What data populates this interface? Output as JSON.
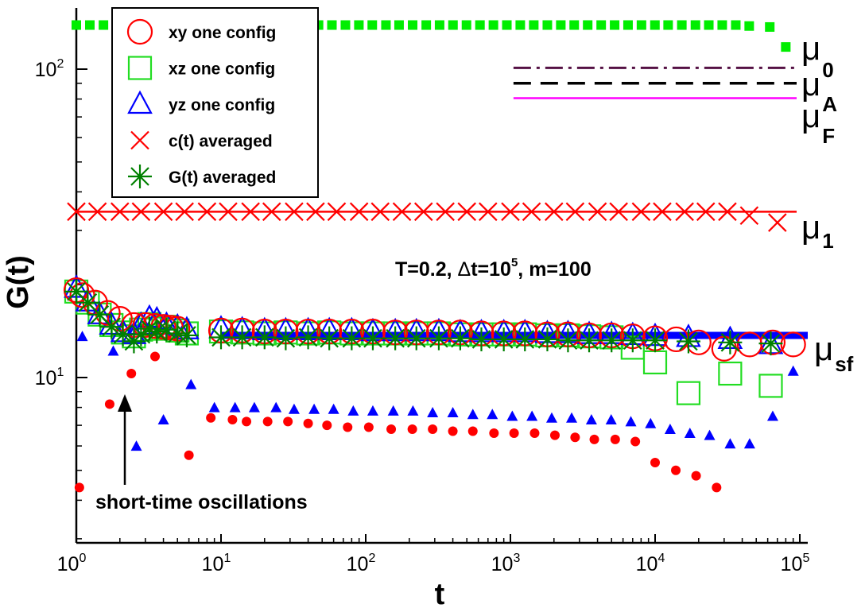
{
  "chart_data": {
    "type": "scatter",
    "title": "",
    "xlabel": "t",
    "ylabel": "G(t)",
    "x_scale": "log",
    "y_scale": "log",
    "xlim": [
      1,
      100000
    ],
    "ylim": [
      3,
      160
    ],
    "x_ticks": [
      {
        "value": 1,
        "base": "10",
        "exp": "0"
      },
      {
        "value": 10,
        "base": "10",
        "exp": "1"
      },
      {
        "value": 100,
        "base": "10",
        "exp": "2"
      },
      {
        "value": 1000,
        "base": "10",
        "exp": "3"
      },
      {
        "value": 10000,
        "base": "10",
        "exp": "4"
      },
      {
        "value": 100000,
        "base": "10",
        "exp": "5"
      }
    ],
    "y_ticks": [
      {
        "value": 10,
        "base": "10",
        "exp": "1"
      },
      {
        "value": 100,
        "base": "10",
        "exp": "2"
      }
    ],
    "legend": {
      "position": "top-left",
      "entries": [
        {
          "label": "xy one config",
          "marker": "open-circle",
          "color": "#ff0000"
        },
        {
          "label": "xz one config",
          "marker": "open-square",
          "color": "#22dd22"
        },
        {
          "label": "yz one config",
          "marker": "open-triangle",
          "color": "#0000ff"
        },
        {
          "label": "c(t) averaged",
          "marker": "x",
          "color": "#ff0000"
        },
        {
          "label": "G(t) averaged",
          "marker": "asterisk",
          "color": "#008000"
        }
      ]
    },
    "series": [
      {
        "name": "xy one config",
        "marker": "open-circle",
        "color": "#ff0000",
        "x": [
          1,
          1.1,
          1.35,
          1.65,
          2,
          2.5,
          3,
          3.5,
          4,
          4.5,
          5,
          10,
          14,
          20,
          28,
          40,
          56,
          80,
          112,
          160,
          224,
          320,
          450,
          630,
          900,
          1260,
          1800,
          2500,
          3500,
          5000,
          7000,
          10000,
          14000,
          20000,
          30000,
          45000,
          65000,
          90000
        ],
        "y": [
          19.2,
          18.5,
          17.5,
          16.2,
          15.5,
          14.8,
          14.8,
          14.7,
          14.6,
          14.5,
          14.4,
          14.2,
          14.2,
          14.1,
          14.1,
          14.1,
          14.1,
          14.1,
          14.1,
          14.0,
          14.0,
          14.0,
          14.0,
          13.9,
          13.9,
          13.9,
          13.8,
          13.8,
          13.7,
          13.7,
          13.6,
          13.4,
          13.3,
          13.0,
          12.4,
          12.8,
          13.0,
          12.8
        ]
      },
      {
        "name": "xz one config",
        "marker": "open-square",
        "color": "#22dd22",
        "x": [
          1,
          1.2,
          1.45,
          1.75,
          2.1,
          2.5,
          2.8,
          3.2,
          3.6,
          4.2,
          5,
          5.8,
          10,
          14,
          20,
          28,
          40,
          56,
          80,
          112,
          160,
          224,
          320,
          450,
          630,
          900,
          1260,
          1800,
          2500,
          3500,
          5000,
          7000,
          10000,
          17000,
          33000,
          63000
        ],
        "y": [
          19.0,
          17.5,
          16.0,
          14.8,
          14.0,
          13.6,
          14.3,
          14.9,
          14.4,
          14.6,
          14.2,
          13.9,
          14.1,
          14.0,
          13.9,
          14.0,
          13.9,
          14.0,
          13.9,
          13.9,
          13.9,
          13.9,
          13.9,
          13.8,
          13.8,
          13.8,
          13.8,
          13.7,
          13.7,
          13.6,
          13.5,
          12.5,
          11.2,
          8.9,
          10.3,
          9.4
        ]
      },
      {
        "name": "yz one config",
        "marker": "open-triangle",
        "color": "#0000ff",
        "x": [
          1,
          1.2,
          1.45,
          1.75,
          2.1,
          2.5,
          2.8,
          3.2,
          3.6,
          4.2,
          5,
          5.8,
          10,
          14,
          20,
          28,
          40,
          56,
          80,
          112,
          160,
          224,
          320,
          450,
          630,
          900,
          1260,
          1800,
          2500,
          3500,
          5000,
          7000,
          10000,
          17000,
          33000,
          63000
        ],
        "y": [
          19.5,
          17.6,
          16.0,
          14.8,
          14.0,
          13.8,
          14.8,
          15.6,
          15.4,
          14.8,
          14.6,
          14.3,
          14.4,
          14.3,
          14.2,
          14.2,
          14.2,
          14.2,
          14.2,
          14.1,
          14.1,
          14.1,
          14.1,
          14.0,
          14.0,
          14.0,
          14.0,
          13.9,
          13.9,
          13.8,
          13.8,
          13.7,
          13.6,
          13.5,
          13.3,
          12.8
        ]
      },
      {
        "name": "c(t) averaged",
        "marker": "x",
        "color": "#ff0000",
        "x": [
          1,
          1.4,
          2,
          2.8,
          4,
          5.6,
          8,
          11.2,
          16,
          22.4,
          32,
          45,
          63,
          90,
          126,
          178,
          251,
          355,
          500,
          700,
          1000,
          1400,
          2000,
          2800,
          4000,
          5600,
          8000,
          11200,
          16000,
          22400,
          31600,
          44700,
          70000
        ],
        "y": [
          34.5,
          34.5,
          34.5,
          34.5,
          34.5,
          34.5,
          34.5,
          34.5,
          34.5,
          34.5,
          34.5,
          34.5,
          34.5,
          34.5,
          34.5,
          34.5,
          34.5,
          34.5,
          34.5,
          34.5,
          34.5,
          34.5,
          34.5,
          34.5,
          34.5,
          34.5,
          34.5,
          34.5,
          34.5,
          34.5,
          34.5,
          33.5,
          31.8
        ]
      },
      {
        "name": "G(t) averaged",
        "marker": "asterisk",
        "color": "#008000",
        "x": [
          1,
          1.2,
          1.45,
          1.75,
          2.1,
          2.5,
          2.8,
          3.2,
          3.6,
          4.2,
          5,
          5.8,
          10,
          14,
          20,
          28,
          40,
          56,
          80,
          112,
          160,
          224,
          320,
          450,
          630,
          900,
          1260,
          1800,
          2500,
          3500,
          5000,
          7000,
          10000,
          17000,
          33000,
          63000
        ],
        "y": [
          19.0,
          17.5,
          16.0,
          14.6,
          13.8,
          13.1,
          13.8,
          14.4,
          14.1,
          14.3,
          13.9,
          13.7,
          13.5,
          13.5,
          13.5,
          13.4,
          13.5,
          13.4,
          13.4,
          13.4,
          13.4,
          13.4,
          13.4,
          13.4,
          13.3,
          13.3,
          13.3,
          13.3,
          13.2,
          13.2,
          13.2,
          13.2,
          13.2,
          13.1,
          13.0,
          12.9
        ]
      },
      {
        "name": "red filled circles",
        "marker": "filled-circle",
        "color": "#ff0000",
        "x": [
          1.05,
          1.7,
          2.4,
          3.5,
          6,
          8.5,
          12,
          15,
          21,
          29,
          40,
          54,
          75,
          105,
          150,
          210,
          290,
          400,
          550,
          770,
          1060,
          1470,
          2030,
          2800,
          3800,
          5300,
          7300,
          10000,
          13900,
          19200,
          26600
        ],
        "y": [
          4.4,
          8.2,
          10.3,
          11.7,
          5.6,
          7.4,
          7.3,
          7.2,
          7.2,
          7.2,
          7.1,
          7.0,
          6.9,
          6.9,
          6.8,
          6.8,
          6.8,
          6.7,
          6.7,
          6.6,
          6.6,
          6.6,
          6.5,
          6.4,
          6.3,
          6.3,
          6.2,
          5.3,
          5.0,
          4.8,
          4.4
        ]
      },
      {
        "name": "blue filled triangles",
        "marker": "filled-triangle",
        "color": "#0000ff",
        "x": [
          1.1,
          1.8,
          2.6,
          4,
          6.2,
          9,
          12.5,
          17,
          24,
          32,
          44,
          60,
          82,
          112,
          155,
          212,
          290,
          400,
          550,
          750,
          1030,
          1410,
          1930,
          2650,
          3630,
          4970,
          6800,
          9300,
          12700,
          17400,
          23800,
          33000,
          45000,
          65000,
          90000
        ],
        "y": [
          13.6,
          12.2,
          6.0,
          7.3,
          9.5,
          8.0,
          8.0,
          8.0,
          8.0,
          7.9,
          7.9,
          7.9,
          7.8,
          7.8,
          7.8,
          7.8,
          7.7,
          7.7,
          7.6,
          7.6,
          7.5,
          7.5,
          7.4,
          7.4,
          7.3,
          7.3,
          7.2,
          7.1,
          6.8,
          6.6,
          6.5,
          6.1,
          6.1,
          7.5,
          10.5
        ]
      },
      {
        "name": "green filled squares",
        "marker": "filled-square",
        "color": "#00ee00",
        "x": [
          1,
          1.24,
          1.54,
          1.9,
          2.36,
          2.92,
          3.62,
          4.48,
          5.55,
          6.87,
          8.51,
          10.5,
          13.1,
          16.2,
          20.0,
          24.8,
          30.8,
          38.1,
          47.2,
          58.4,
          72.4,
          89.7,
          111,
          138,
          170,
          211,
          262,
          324,
          401,
          497,
          616,
          763,
          945,
          1170,
          1450,
          1800,
          2230,
          2760,
          3420,
          4240,
          5250,
          6500,
          8050,
          9970,
          12300,
          15300,
          19000,
          23500,
          29100,
          36100,
          44700,
          62000,
          80000
        ],
        "y": [
          139,
          139,
          139,
          139,
          139,
          139,
          139,
          139,
          139,
          139,
          139,
          139,
          139,
          139,
          139,
          139,
          139,
          139,
          139,
          139,
          139,
          139,
          139,
          139,
          139,
          139,
          139,
          139,
          139,
          139,
          139,
          139,
          139,
          139,
          139,
          139,
          139,
          139,
          139,
          139,
          139,
          139,
          139,
          139,
          139,
          139,
          139,
          139,
          139,
          139,
          138,
          137,
          118
        ]
      }
    ],
    "lines": [
      {
        "name": "mu_0",
        "y": 101,
        "x_start": 1050,
        "x_end": 100000,
        "style": "dash-dot",
        "color": "#551144",
        "label_letter": "μ",
        "label_sub": "0"
      },
      {
        "name": "mu_A",
        "y": 90,
        "x_start": 1050,
        "x_end": 100000,
        "style": "dashed",
        "color": "#000000",
        "label_letter": "μ",
        "label_sub": "A"
      },
      {
        "name": "mu_F",
        "y": 80.5,
        "x_start": 1050,
        "x_end": 100000,
        "style": "solid",
        "color": "#ff00ff",
        "label_letter": "μ",
        "label_sub": "F"
      },
      {
        "name": "mu_1",
        "y": 34.5,
        "x_start": 1,
        "x_end": 100000,
        "style": "solid",
        "color": "#ff0000",
        "label_letter": "μ",
        "label_sub": "1"
      },
      {
        "name": "mu_sf",
        "y": 13.7,
        "x_start": 10,
        "x_end": 100000,
        "style": "thick-solid",
        "color": "#0000ff",
        "label_letter": "μ",
        "label_sub": "sf"
      }
    ],
    "annotations": [
      {
        "name": "params",
        "text_parts": [
          "T=0.2, ",
          "Δ",
          "t=10",
          "5",
          ", m=100"
        ]
      },
      {
        "name": "short-time-oscillations",
        "text": "short-time oscillations",
        "arrow_to_x": 2.1,
        "arrow_to_y": 9.5
      }
    ]
  }
}
